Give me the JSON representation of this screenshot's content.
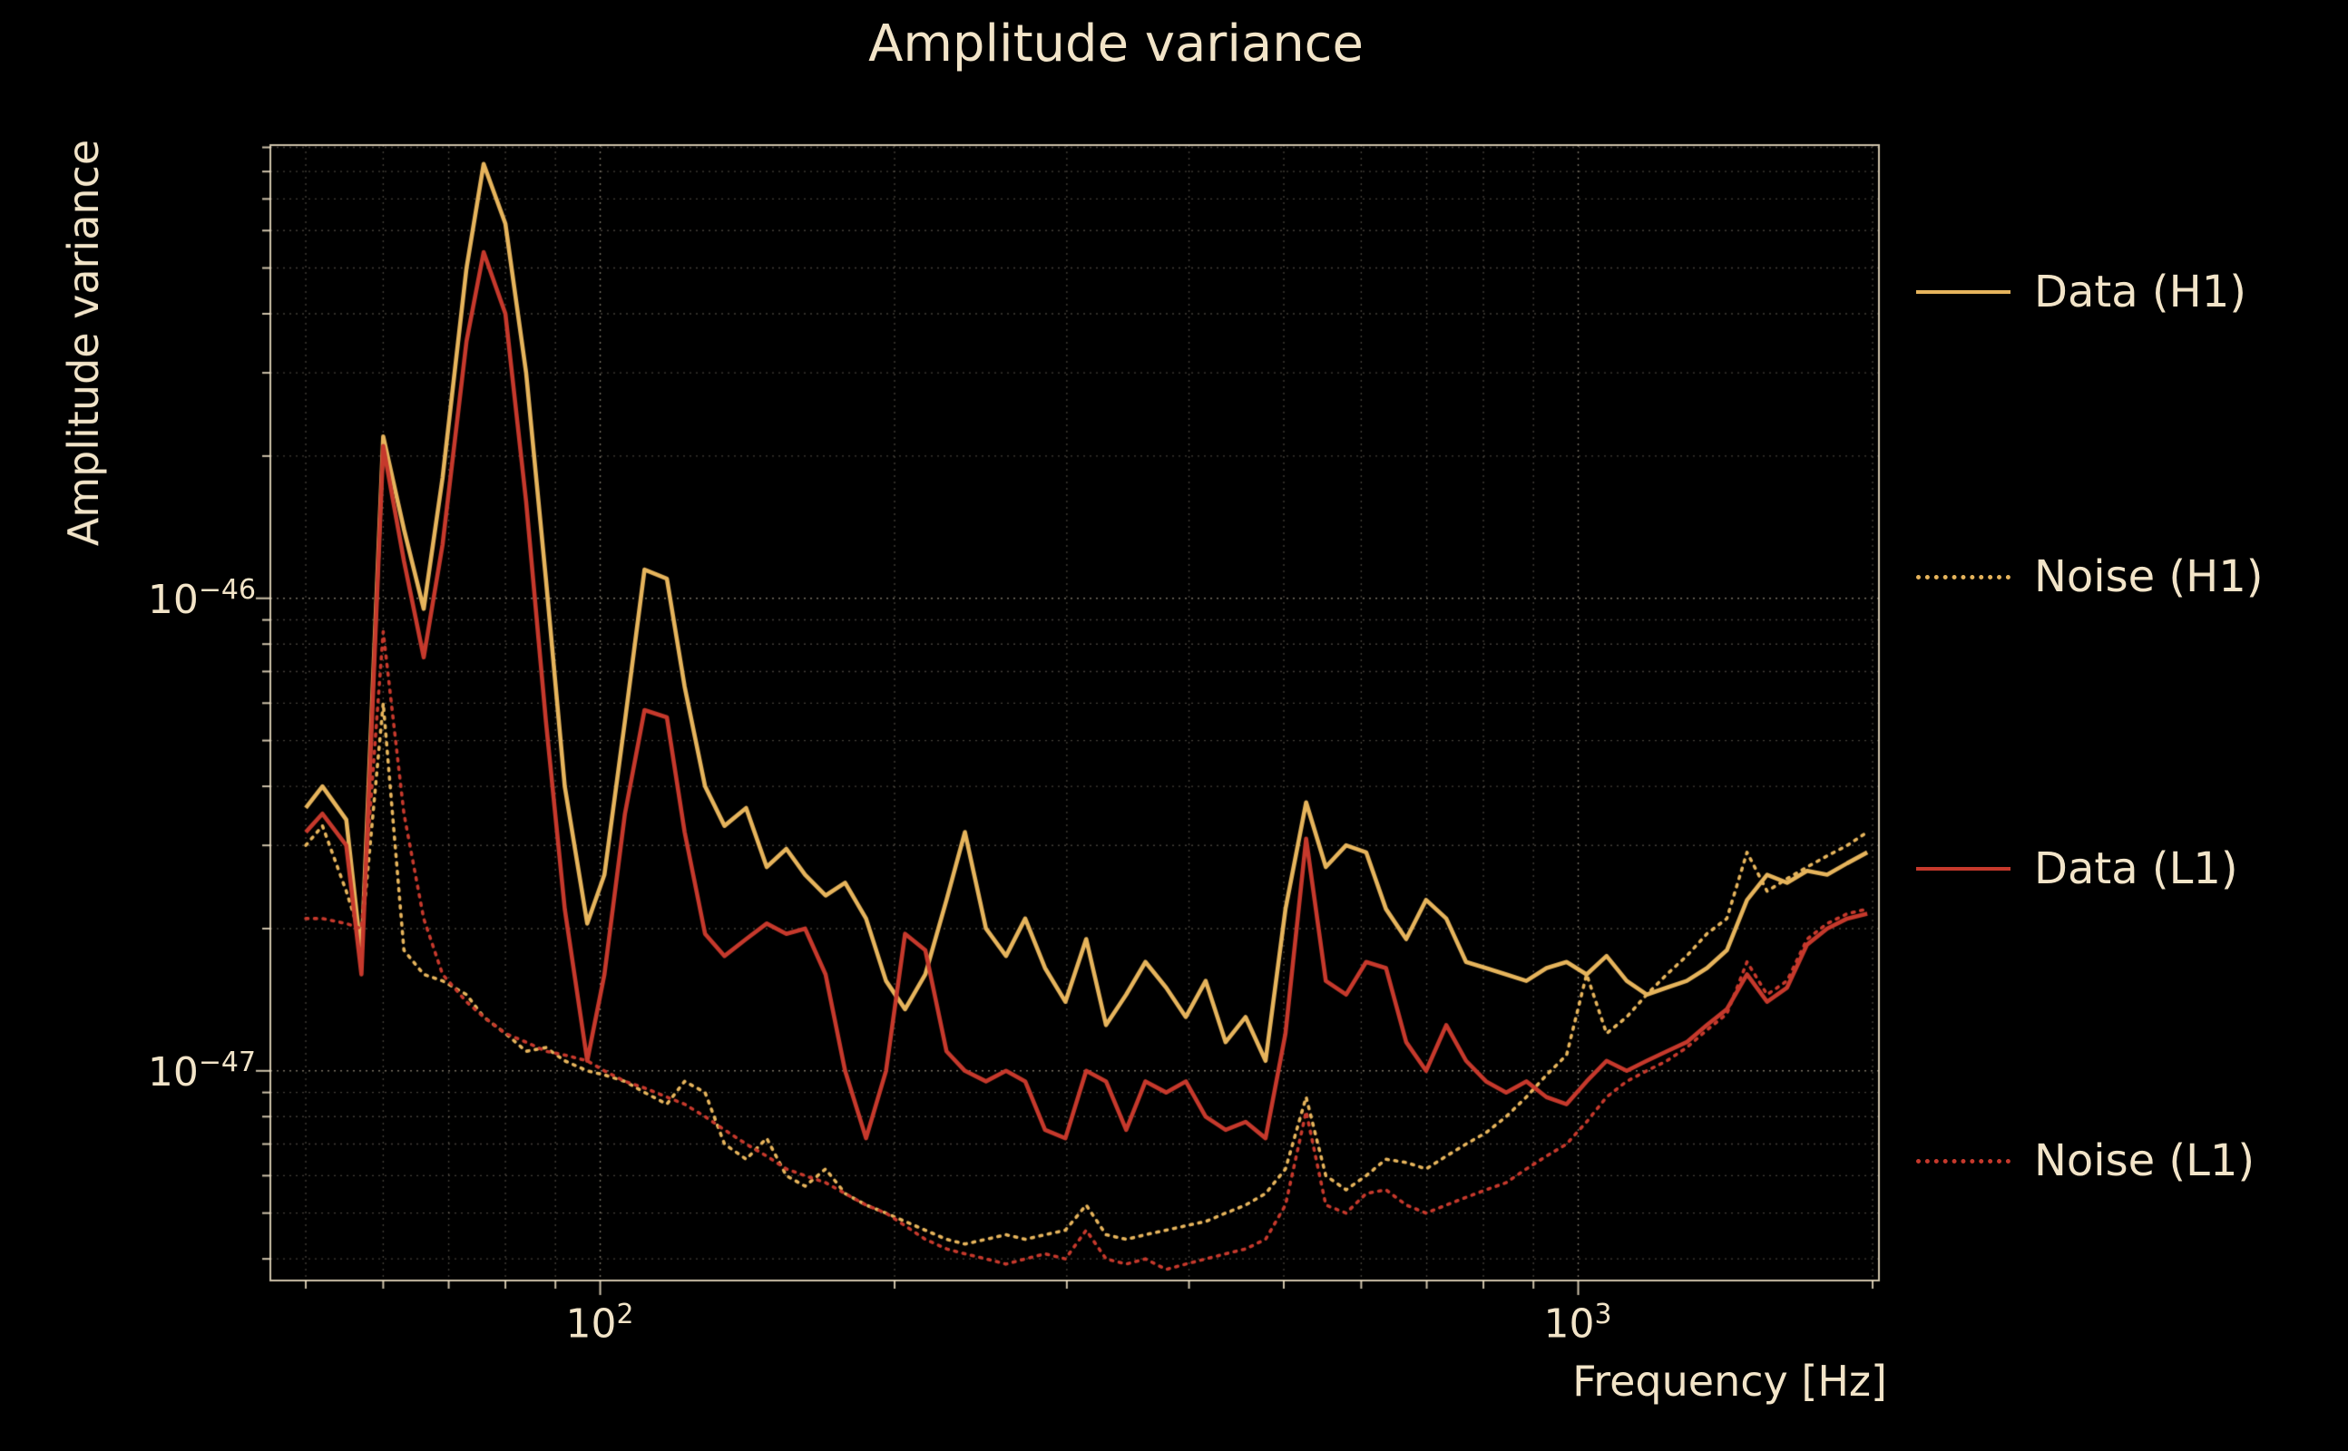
{
  "page": {
    "background": "#000000",
    "text_color": "#f2e4c8"
  },
  "title": "Amplitude variance",
  "axes": {
    "xlabel": "Frequency [Hz]",
    "ylabel": "Amplitude variance",
    "x_ticks": [
      {
        "base": "10",
        "exp": "2"
      },
      {
        "base": "10",
        "exp": "3"
      }
    ],
    "y_ticks": [
      {
        "base": "10",
        "exp": "−46"
      },
      {
        "base": "10",
        "exp": "−47"
      }
    ]
  },
  "legend": {
    "items": [
      {
        "label": "Data (H1)",
        "color": "#e6b45c",
        "linestyle": "solid"
      },
      {
        "label": "Noise (H1)",
        "color": "#e6b45c",
        "linestyle": "dotted"
      },
      {
        "label": "Data (L1)",
        "color": "#c6392c",
        "linestyle": "solid"
      },
      {
        "label": "Noise (L1)",
        "color": "#c6392c",
        "linestyle": "dotted"
      }
    ]
  },
  "colors": {
    "h1": "#e6b45c",
    "l1": "#c6392c",
    "grid_major": "rgba(242,228,200,0.5)",
    "grid_minor": "rgba(242,228,200,0.28)",
    "frame": "rgba(242,228,200,0.85)"
  },
  "chart_data": {
    "type": "line",
    "title": "Amplitude variance",
    "xlabel": "Frequency [Hz]",
    "ylabel": "Amplitude variance",
    "xscale": "log",
    "yscale": "log",
    "xlim": [
      46,
      2030
    ],
    "ylim": [
      3.6e-48,
      9.1e-46
    ],
    "grid": true,
    "legend_position": "right",
    "values_scale": 1e-47,
    "x": [
      50,
      52,
      55,
      57,
      60,
      63,
      66,
      69,
      73,
      76,
      80,
      84,
      88,
      92,
      97,
      101,
      106,
      111,
      117,
      122,
      128,
      134,
      141,
      148,
      155,
      162,
      170,
      178,
      187,
      196,
      205,
      215,
      226,
      236,
      248,
      260,
      272,
      285,
      299,
      314,
      329,
      345,
      361,
      379,
      397,
      416,
      436,
      457,
      479,
      502,
      527,
      552,
      579,
      607,
      636,
      667,
      699,
      733,
      768,
      805,
      844,
      885,
      928,
      973,
      1020,
      1069,
      1121,
      1175,
      1232,
      1291,
      1354,
      1419,
      1488,
      1560,
      1635,
      1714,
      1797,
      1884,
      1975
    ],
    "series": [
      {
        "name": "Data (H1)",
        "color": "#e6b45c",
        "linestyle": "solid",
        "values": [
          3.6,
          4.0,
          3.4,
          1.75,
          22,
          14,
          9.5,
          18,
          50,
          83,
          62,
          30,
          11,
          4.0,
          2.05,
          2.6,
          5.5,
          11.5,
          11.0,
          6.5,
          4.0,
          3.3,
          3.6,
          2.7,
          2.95,
          2.6,
          2.35,
          2.5,
          2.1,
          1.55,
          1.35,
          1.6,
          2.3,
          3.2,
          2.0,
          1.75,
          2.1,
          1.65,
          1.4,
          1.9,
          1.25,
          1.45,
          1.7,
          1.5,
          1.3,
          1.55,
          1.15,
          1.3,
          1.05,
          2.2,
          3.7,
          2.7,
          3.0,
          2.9,
          2.2,
          1.9,
          2.3,
          2.1,
          1.7,
          1.65,
          1.6,
          1.55,
          1.65,
          1.7,
          1.6,
          1.75,
          1.55,
          1.45,
          1.5,
          1.55,
          1.65,
          1.8,
          2.3,
          2.6,
          2.5,
          2.65,
          2.6,
          2.75,
          2.9
        ]
      },
      {
        "name": "Noise (H1)",
        "color": "#e6b45c",
        "linestyle": "dotted",
        "values": [
          3.0,
          3.3,
          2.4,
          1.9,
          6.0,
          1.8,
          1.6,
          1.55,
          1.45,
          1.3,
          1.2,
          1.1,
          1.12,
          1.05,
          1.0,
          0.98,
          0.95,
          0.9,
          0.85,
          0.95,
          0.9,
          0.7,
          0.65,
          0.72,
          0.6,
          0.57,
          0.62,
          0.55,
          0.52,
          0.5,
          0.48,
          0.46,
          0.44,
          0.43,
          0.44,
          0.45,
          0.44,
          0.45,
          0.46,
          0.52,
          0.45,
          0.44,
          0.45,
          0.46,
          0.47,
          0.48,
          0.5,
          0.52,
          0.55,
          0.62,
          0.88,
          0.6,
          0.56,
          0.6,
          0.65,
          0.64,
          0.62,
          0.66,
          0.7,
          0.74,
          0.8,
          0.88,
          0.98,
          1.08,
          1.6,
          1.2,
          1.3,
          1.45,
          1.6,
          1.75,
          1.95,
          2.1,
          2.9,
          2.4,
          2.55,
          2.7,
          2.85,
          3.0,
          3.2
        ]
      },
      {
        "name": "Data (L1)",
        "color": "#c6392c",
        "linestyle": "solid",
        "values": [
          3.2,
          3.5,
          3.0,
          1.6,
          21,
          12,
          7.5,
          13,
          35,
          54,
          40,
          16,
          5.5,
          2.2,
          1.05,
          1.6,
          3.5,
          5.8,
          5.6,
          3.2,
          1.95,
          1.75,
          1.9,
          2.05,
          1.95,
          2.0,
          1.6,
          1.0,
          0.72,
          1.0,
          1.95,
          1.8,
          1.1,
          1.0,
          0.95,
          1.0,
          0.95,
          0.75,
          0.72,
          1.0,
          0.95,
          0.75,
          0.95,
          0.9,
          0.95,
          0.8,
          0.75,
          0.78,
          0.72,
          1.2,
          3.1,
          1.55,
          1.45,
          1.7,
          1.65,
          1.15,
          1.0,
          1.25,
          1.05,
          0.95,
          0.9,
          0.95,
          0.88,
          0.85,
          0.95,
          1.05,
          1.0,
          1.05,
          1.1,
          1.15,
          1.25,
          1.35,
          1.6,
          1.4,
          1.5,
          1.85,
          2.0,
          2.1,
          2.15
        ]
      },
      {
        "name": "Noise (L1)",
        "color": "#c6392c",
        "linestyle": "dotted",
        "values": [
          2.1,
          2.1,
          2.05,
          2.0,
          8.5,
          3.5,
          2.1,
          1.6,
          1.4,
          1.3,
          1.2,
          1.15,
          1.1,
          1.08,
          1.05,
          1.0,
          0.95,
          0.92,
          0.88,
          0.85,
          0.8,
          0.75,
          0.7,
          0.66,
          0.62,
          0.6,
          0.58,
          0.55,
          0.52,
          0.5,
          0.47,
          0.44,
          0.42,
          0.41,
          0.4,
          0.39,
          0.4,
          0.41,
          0.4,
          0.46,
          0.4,
          0.39,
          0.4,
          0.38,
          0.39,
          0.4,
          0.41,
          0.42,
          0.44,
          0.52,
          0.82,
          0.52,
          0.5,
          0.55,
          0.56,
          0.52,
          0.5,
          0.52,
          0.54,
          0.56,
          0.58,
          0.62,
          0.66,
          0.7,
          0.78,
          0.88,
          0.95,
          1.0,
          1.05,
          1.12,
          1.22,
          1.32,
          1.7,
          1.45,
          1.55,
          1.9,
          2.05,
          2.15,
          2.2
        ]
      }
    ]
  }
}
